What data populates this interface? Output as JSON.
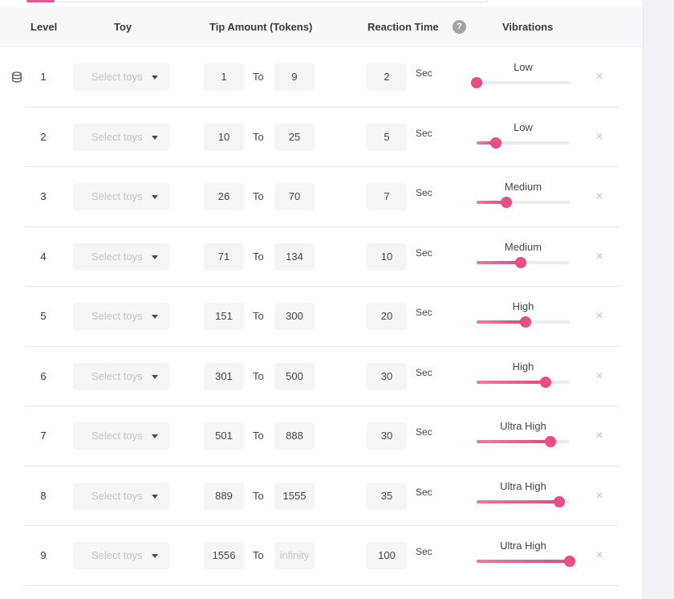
{
  "header": {
    "level": "Level",
    "toy": "Toy",
    "tip_amount": "Tip Amount (Tokens)",
    "reaction_time": "Reaction Time",
    "help": "?",
    "vibrations": "Vibrations"
  },
  "colors": {
    "accent": "#e8588f",
    "track": "#ececee",
    "input_bg": "#f5f5f6",
    "header_bg": "#f7f8fa"
  },
  "icons": {
    "database": "database-icon",
    "remove": "close-icon",
    "caret": "caret-down-icon",
    "help": "help-icon"
  },
  "labels": {
    "to": "To",
    "sec": "Sec",
    "remove": "×"
  },
  "rows": [
    {
      "level": "1",
      "toy_placeholder": "Select toys",
      "from": "1",
      "to": "9",
      "to_is_placeholder": false,
      "reaction": "2",
      "vibration": "Low",
      "intensity": 0.0
    },
    {
      "level": "2",
      "toy_placeholder": "Select toys",
      "from": "10",
      "to": "25",
      "to_is_placeholder": false,
      "reaction": "5",
      "vibration": "Low",
      "intensity": 0.21
    },
    {
      "level": "3",
      "toy_placeholder": "Select toys",
      "from": "26",
      "to": "70",
      "to_is_placeholder": false,
      "reaction": "7",
      "vibration": "Medium",
      "intensity": 0.32
    },
    {
      "level": "4",
      "toy_placeholder": "Select toys",
      "from": "71",
      "to": "134",
      "to_is_placeholder": false,
      "reaction": "10",
      "vibration": "Medium",
      "intensity": 0.47
    },
    {
      "level": "5",
      "toy_placeholder": "Select toys",
      "from": "151",
      "to": "300",
      "to_is_placeholder": false,
      "reaction": "20",
      "vibration": "High",
      "intensity": 0.53
    },
    {
      "level": "6",
      "toy_placeholder": "Select toys",
      "from": "301",
      "to": "500",
      "to_is_placeholder": false,
      "reaction": "30",
      "vibration": "High",
      "intensity": 0.74
    },
    {
      "level": "7",
      "toy_placeholder": "Select toys",
      "from": "501",
      "to": "888",
      "to_is_placeholder": false,
      "reaction": "30",
      "vibration": "Ultra High",
      "intensity": 0.79
    },
    {
      "level": "8",
      "toy_placeholder": "Select toys",
      "from": "889",
      "to": "1555",
      "to_is_placeholder": false,
      "reaction": "35",
      "vibration": "Ultra High",
      "intensity": 0.89
    },
    {
      "level": "9",
      "toy_placeholder": "Select toys",
      "from": "1556",
      "to": "infinity",
      "to_is_placeholder": true,
      "reaction": "100",
      "vibration": "Ultra High",
      "intensity": 1.0
    }
  ]
}
